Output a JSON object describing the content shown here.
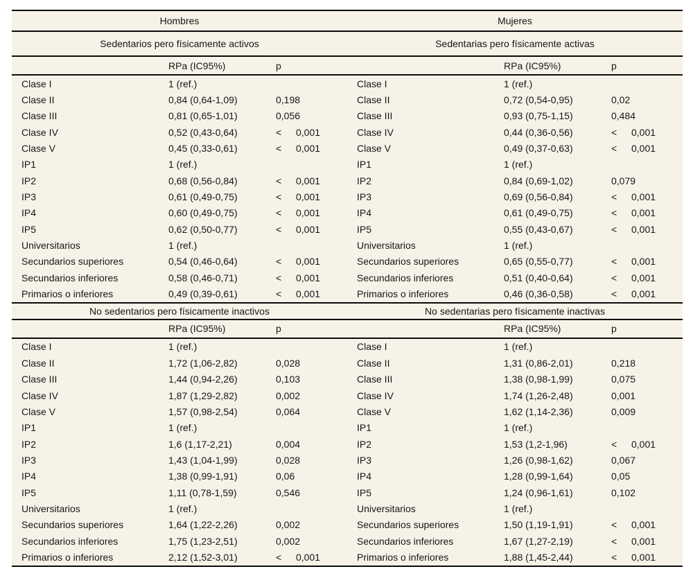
{
  "colors": {
    "table_background": "#f7f2e8",
    "rule": "#0b0b0b",
    "text": "#161616",
    "page_background": "#ffffff"
  },
  "chart_data": {
    "type": "table",
    "group_headers": [
      "Hombres",
      "Mujeres"
    ],
    "col_headers": {
      "rpa": "RPa (IC95%)",
      "p": "p"
    },
    "sections": [
      {
        "titles": [
          "Sedentarios pero físicamente activos",
          "Sedentarias pero físicamente activas"
        ],
        "halves": [
          {
            "rows": [
              {
                "label": "Clase I",
                "rpa": "1 (ref.)",
                "lt": "",
                "p": ""
              },
              {
                "label": "Clase II",
                "rpa": "0,84 (0,64-1,09)",
                "lt": "",
                "p": "0,198"
              },
              {
                "label": "Clase III",
                "rpa": "0,81 (0,65-1,01)",
                "lt": "",
                "p": "0,056"
              },
              {
                "label": "Clase IV",
                "rpa": "0,52 (0,43-0,64)",
                "lt": "<",
                "p": "0,001"
              },
              {
                "label": "Clase V",
                "rpa": "0,45 (0,33-0,61)",
                "lt": "<",
                "p": "0,001"
              },
              {
                "label": "IP1",
                "rpa": "1 (ref.)",
                "lt": "",
                "p": ""
              },
              {
                "label": "IP2",
                "rpa": "0,68 (0,56-0,84)",
                "lt": "<",
                "p": "0,001"
              },
              {
                "label": "IP3",
                "rpa": "0,61 (0,49-0,75)",
                "lt": "<",
                "p": "0,001"
              },
              {
                "label": "IP4",
                "rpa": "0,60 (0,49-0,75)",
                "lt": "<",
                "p": "0,001"
              },
              {
                "label": "IP5",
                "rpa": "0,62 (0,50-0,77)",
                "lt": "<",
                "p": "0,001"
              },
              {
                "label": "Universitarios",
                "rpa": "1 (ref.)",
                "lt": "",
                "p": ""
              },
              {
                "label": "Secundarios superiores",
                "rpa": "0,54 (0,46-0,64)",
                "lt": "<",
                "p": "0,001"
              },
              {
                "label": "Secundarios inferiores",
                "rpa": "0,58 (0,46-0,71)",
                "lt": "<",
                "p": "0,001"
              },
              {
                "label": "Primarios o inferiores",
                "rpa": "0,49 (0,39-0,61)",
                "lt": "<",
                "p": "0,001"
              }
            ]
          },
          {
            "rows": [
              {
                "label": "Clase I",
                "rpa": "1 (ref.)",
                "lt": "",
                "p": ""
              },
              {
                "label": "Clase II",
                "rpa": "0,72 (0,54-0,95)",
                "lt": "",
                "p": "0,02"
              },
              {
                "label": "Clase III",
                "rpa": "0,93 (0,75-1,15)",
                "lt": "",
                "p": "0,484"
              },
              {
                "label": "Clase IV",
                "rpa": "0,44 (0,36-0,56)",
                "lt": "<",
                "p": "0,001"
              },
              {
                "label": "Clase V",
                "rpa": "0,49 (0,37-0,63)",
                "lt": "<",
                "p": "0,001"
              },
              {
                "label": "IP1",
                "rpa": "1 (ref.)",
                "lt": "",
                "p": ""
              },
              {
                "label": "IP2",
                "rpa": "0,84 (0,69-1,02)",
                "lt": "",
                "p": "0,079"
              },
              {
                "label": "IP3",
                "rpa": "0,69 (0,56-0,84)",
                "lt": "<",
                "p": "0,001"
              },
              {
                "label": "IP4",
                "rpa": "0,61 (0,49-0,75)",
                "lt": "<",
                "p": "0,001"
              },
              {
                "label": "IP5",
                "rpa": "0,55 (0,43-0,67)",
                "lt": "<",
                "p": "0,001"
              },
              {
                "label": "Universitarios",
                "rpa": "1 (ref.)",
                "lt": "",
                "p": ""
              },
              {
                "label": "Secundarios superiores",
                "rpa": "0,65 (0,55-0,77)",
                "lt": "<",
                "p": "0,001"
              },
              {
                "label": "Secundarios inferiores",
                "rpa": "0,51 (0,40-0,64)",
                "lt": "<",
                "p": "0,001"
              },
              {
                "label": "Primarios o inferiores",
                "rpa": "0,46 (0,36-0,58)",
                "lt": "<",
                "p": "0,001"
              }
            ]
          }
        ]
      },
      {
        "titles": [
          "No sedentarios pero físicamente inactivos",
          "No sedentarias pero físicamente inactivas"
        ],
        "halves": [
          {
            "rows": [
              {
                "label": "Clase I",
                "rpa": "1 (ref.)",
                "lt": "",
                "p": ""
              },
              {
                "label": "Clase II",
                "rpa": "1,72 (1,06-2,82)",
                "lt": "",
                "p": "0,028"
              },
              {
                "label": "Clase III",
                "rpa": "1,44 (0,94-2,26)",
                "lt": "",
                "p": "0,103"
              },
              {
                "label": "Clase IV",
                "rpa": "1,87 (1,29-2,82)",
                "lt": "",
                "p": "0,002"
              },
              {
                "label": "Clase V",
                "rpa": "1,57 (0,98-2,54)",
                "lt": "",
                "p": "0,064"
              },
              {
                "label": "IP1",
                "rpa": "1 (ref.)",
                "lt": "",
                "p": ""
              },
              {
                "label": "IP2",
                "rpa": "1,6 (1,17-2,21)",
                "lt": "",
                "p": "0,004"
              },
              {
                "label": "IP3",
                "rpa": "1,43 (1,04-1,99)",
                "lt": "",
                "p": "0,028"
              },
              {
                "label": "IP4",
                "rpa": "1,38 (0,99-1,91)",
                "lt": "",
                "p": "0,06"
              },
              {
                "label": "IP5",
                "rpa": "1,11 (0,78-1,59)",
                "lt": "",
                "p": "0,546"
              },
              {
                "label": "Universitarios",
                "rpa": "1 (ref.)",
                "lt": "",
                "p": ""
              },
              {
                "label": "Secundarios superiores",
                "rpa": "1,64 (1,22-2,26)",
                "lt": "",
                "p": "0,002"
              },
              {
                "label": "Secundarios inferiores",
                "rpa": "1,75 (1,23-2,51)",
                "lt": "",
                "p": "0,002"
              },
              {
                "label": "Primarios o inferiores",
                "rpa": "2,12 (1,52-3,01)",
                "lt": "<",
                "p": "0,001"
              }
            ]
          },
          {
            "rows": [
              {
                "label": "Clase I",
                "rpa": "1 (ref.)",
                "lt": "",
                "p": ""
              },
              {
                "label": "Clase II",
                "rpa": "1,31 (0,86-2,01)",
                "lt": "",
                "p": "0,218"
              },
              {
                "label": "Clase III",
                "rpa": "1,38 (0,98-1,99)",
                "lt": "",
                "p": "0,075"
              },
              {
                "label": "Clase IV",
                "rpa": "1,74 (1,26-2,48)",
                "lt": "",
                "p": "0,001"
              },
              {
                "label": "Clase V",
                "rpa": "1,62 (1,14-2,36)",
                "lt": "",
                "p": "0,009"
              },
              {
                "label": "IP1",
                "rpa": "1 (ref.)",
                "lt": "",
                "p": ""
              },
              {
                "label": "IP2",
                "rpa": "1,53 (1,2-1,96)",
                "lt": "<",
                "p": "0,001"
              },
              {
                "label": "IP3",
                "rpa": "1,26 (0,98-1,62)",
                "lt": "",
                "p": "0,067"
              },
              {
                "label": "IP4",
                "rpa": "1,28 (0,99-1,64)",
                "lt": "",
                "p": "0,05"
              },
              {
                "label": "IP5",
                "rpa": "1,24 (0,96-1,61)",
                "lt": "",
                "p": "0,102"
              },
              {
                "label": "Universitarios",
                "rpa": "1 (ref.)",
                "lt": "",
                "p": ""
              },
              {
                "label": "Secundarios superiores",
                "rpa": "1,50 (1,19-1,91)",
                "lt": "<",
                "p": "0,001"
              },
              {
                "label": "Secundarios inferiores",
                "rpa": "1,67 (1,27-2,19)",
                "lt": "<",
                "p": "0,001"
              },
              {
                "label": "Primarios o inferiores",
                "rpa": "1,88 (1,45-2,44)",
                "lt": "<",
                "p": "0,001"
              }
            ]
          }
        ]
      }
    ]
  }
}
